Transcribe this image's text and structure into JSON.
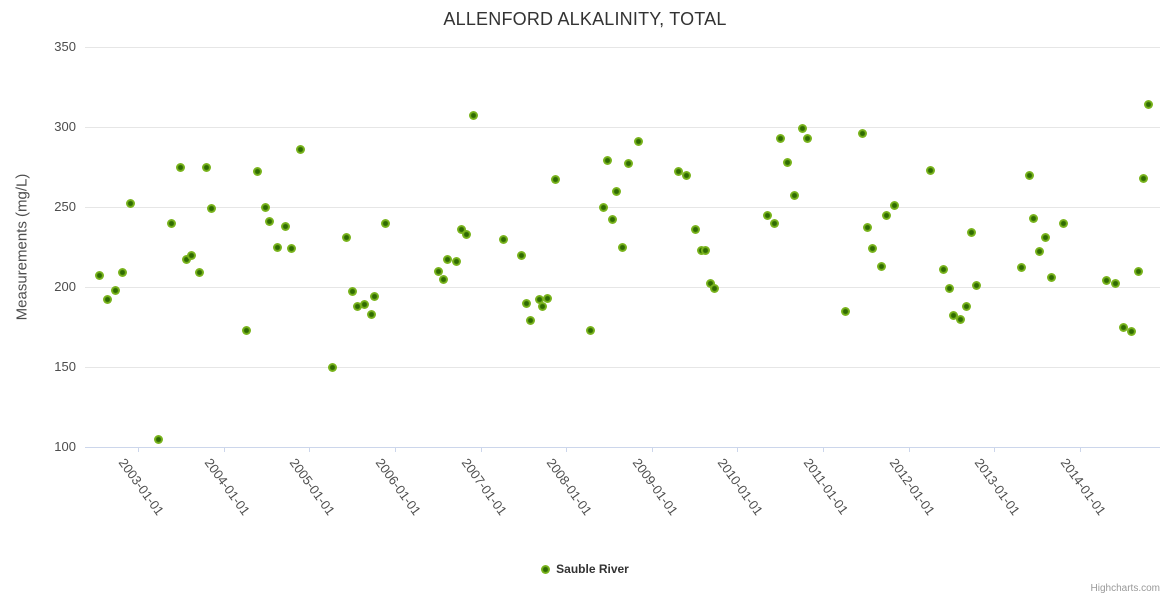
{
  "header": {
    "title": "ALLENFORD ALKALINITY, TOTAL"
  },
  "legend": {
    "items": [
      {
        "label": "Sauble River"
      }
    ]
  },
  "credit": {
    "label": "Highcharts.com"
  },
  "colors": {
    "background": "#ffffff",
    "point_green_outer": "#7bb51e",
    "point_green_inner": "#2f6b02",
    "grid": "#e6e6e6",
    "axis_line": "#ccd6eb",
    "title_text": "#333333",
    "axis_text": "#4d4d4d",
    "credit_text": "#999999"
  },
  "chart_data": {
    "type": "scatter",
    "title": "ALLENFORD ALKALINITY, TOTAL",
    "xlabel": "",
    "ylabel": "Measurements (mg/L)",
    "ylim": [
      100,
      350
    ],
    "yticks": [
      100,
      150,
      200,
      250,
      300,
      350
    ],
    "xticks": [
      "2003-01-01",
      "2004-01-01",
      "2005-01-01",
      "2006-01-01",
      "2007-01-01",
      "2008-01-01",
      "2009-01-01",
      "2010-01-01",
      "2011-01-01",
      "2012-01-01",
      "2013-01-01",
      "2014-01-01"
    ],
    "xlim_decimal_years": [
      2002.381,
      2014.934
    ],
    "grid": "horizontal-only",
    "legend_position": "bottom-center",
    "series": [
      {
        "name": "Sauble River",
        "points": [
          {
            "date": "2002-07-20",
            "value": 207
          },
          {
            "date": "2002-08-21",
            "value": 192
          },
          {
            "date": "2002-09-28",
            "value": 198
          },
          {
            "date": "2002-10-27",
            "value": 209
          },
          {
            "date": "2002-11-28",
            "value": 252
          },
          {
            "date": "2003-03-28",
            "value": 105
          },
          {
            "date": "2003-05-20",
            "value": 240
          },
          {
            "date": "2003-07-01",
            "value": 275
          },
          {
            "date": "2003-07-25",
            "value": 217
          },
          {
            "date": "2003-08-16",
            "value": 220
          },
          {
            "date": "2003-09-21",
            "value": 209
          },
          {
            "date": "2003-10-19",
            "value": 275
          },
          {
            "date": "2003-11-09",
            "value": 249
          },
          {
            "date": "2004-04-07",
            "value": 173
          },
          {
            "date": "2004-05-25",
            "value": 272
          },
          {
            "date": "2004-06-28",
            "value": 250
          },
          {
            "date": "2004-07-16",
            "value": 241
          },
          {
            "date": "2004-08-17",
            "value": 225
          },
          {
            "date": "2004-09-20",
            "value": 238
          },
          {
            "date": "2004-10-18",
            "value": 224
          },
          {
            "date": "2004-11-23",
            "value": 286
          },
          {
            "date": "2005-04-08",
            "value": 150
          },
          {
            "date": "2005-06-08",
            "value": 231
          },
          {
            "date": "2005-07-03",
            "value": 197
          },
          {
            "date": "2005-07-24",
            "value": 188
          },
          {
            "date": "2005-08-22",
            "value": 189
          },
          {
            "date": "2005-09-24",
            "value": 183
          },
          {
            "date": "2005-10-05",
            "value": 194
          },
          {
            "date": "2005-11-20",
            "value": 240
          },
          {
            "date": "2006-07-04",
            "value": 210
          },
          {
            "date": "2006-07-25",
            "value": 205
          },
          {
            "date": "2006-08-12",
            "value": 217
          },
          {
            "date": "2006-09-19",
            "value": 216
          },
          {
            "date": "2006-10-13",
            "value": 236
          },
          {
            "date": "2006-11-02",
            "value": 233
          },
          {
            "date": "2006-12-02",
            "value": 307
          },
          {
            "date": "2007-04-08",
            "value": 230
          },
          {
            "date": "2007-06-22",
            "value": 220
          },
          {
            "date": "2007-07-13",
            "value": 190
          },
          {
            "date": "2007-08-02",
            "value": 179
          },
          {
            "date": "2007-09-11",
            "value": 192
          },
          {
            "date": "2007-09-23",
            "value": 188
          },
          {
            "date": "2007-10-12",
            "value": 193
          },
          {
            "date": "2007-11-18",
            "value": 267
          },
          {
            "date": "2008-04-12",
            "value": 173
          },
          {
            "date": "2008-06-08",
            "value": 250
          },
          {
            "date": "2008-06-26",
            "value": 279
          },
          {
            "date": "2008-07-17",
            "value": 242
          },
          {
            "date": "2008-08-04",
            "value": 260
          },
          {
            "date": "2008-08-28",
            "value": 225
          },
          {
            "date": "2008-09-25",
            "value": 277
          },
          {
            "date": "2008-11-06",
            "value": 291
          },
          {
            "date": "2009-04-23",
            "value": 272
          },
          {
            "date": "2009-05-27",
            "value": 270
          },
          {
            "date": "2009-07-06",
            "value": 236
          },
          {
            "date": "2009-07-29",
            "value": 223
          },
          {
            "date": "2009-08-18",
            "value": 223
          },
          {
            "date": "2009-09-08",
            "value": 202
          },
          {
            "date": "2009-09-24",
            "value": 199
          },
          {
            "date": "2010-05-08",
            "value": 245
          },
          {
            "date": "2010-06-07",
            "value": 240
          },
          {
            "date": "2010-07-01",
            "value": 293
          },
          {
            "date": "2010-08-01",
            "value": 278
          },
          {
            "date": "2010-09-02",
            "value": 257
          },
          {
            "date": "2010-10-06",
            "value": 299
          },
          {
            "date": "2010-10-27",
            "value": 293
          },
          {
            "date": "2011-04-05",
            "value": 185
          },
          {
            "date": "2011-06-16",
            "value": 296
          },
          {
            "date": "2011-07-06",
            "value": 237
          },
          {
            "date": "2011-07-27",
            "value": 224
          },
          {
            "date": "2011-09-08",
            "value": 213
          },
          {
            "date": "2011-09-30",
            "value": 245
          },
          {
            "date": "2011-11-02",
            "value": 251
          },
          {
            "date": "2012-04-02",
            "value": 273
          },
          {
            "date": "2012-05-26",
            "value": 211
          },
          {
            "date": "2012-06-22",
            "value": 199
          },
          {
            "date": "2012-07-08",
            "value": 182
          },
          {
            "date": "2012-08-08",
            "value": 180
          },
          {
            "date": "2012-09-05",
            "value": 188
          },
          {
            "date": "2012-09-27",
            "value": 234
          },
          {
            "date": "2012-10-18",
            "value": 201
          },
          {
            "date": "2013-04-24",
            "value": 212
          },
          {
            "date": "2013-05-29",
            "value": 270
          },
          {
            "date": "2013-06-17",
            "value": 243
          },
          {
            "date": "2013-07-11",
            "value": 222
          },
          {
            "date": "2013-08-05",
            "value": 231
          },
          {
            "date": "2013-08-30",
            "value": 206
          },
          {
            "date": "2013-10-21",
            "value": 240
          },
          {
            "date": "2014-04-24",
            "value": 204
          },
          {
            "date": "2014-05-31",
            "value": 202
          },
          {
            "date": "2014-07-05",
            "value": 175
          },
          {
            "date": "2014-08-08",
            "value": 172
          },
          {
            "date": "2014-09-08",
            "value": 210
          },
          {
            "date": "2014-09-30",
            "value": 268
          },
          {
            "date": "2014-10-18",
            "value": 314
          }
        ]
      }
    ]
  }
}
